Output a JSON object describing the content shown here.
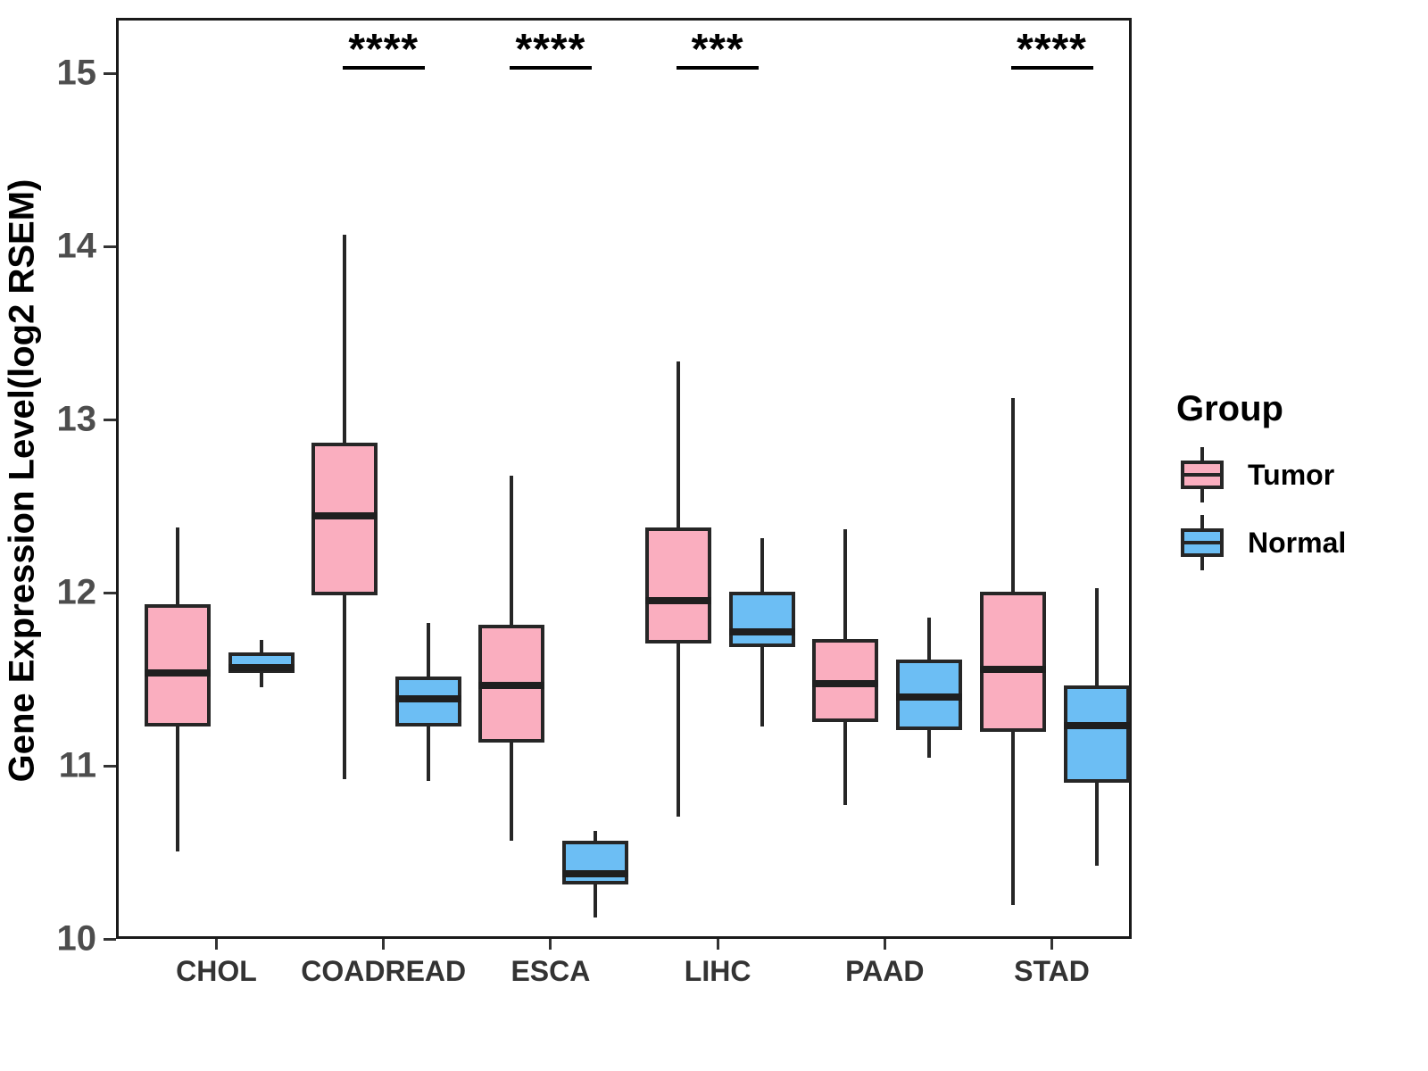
{
  "figure": {
    "y_axis": {
      "label": "Gene Expression Level(log2 RSEM)",
      "ticks": [
        10,
        11,
        12,
        13,
        14,
        15
      ]
    },
    "x_axis": {
      "categories": [
        "CHOL",
        "COADREAD",
        "ESCA",
        "LIHC",
        "PAAD",
        "STAD"
      ]
    },
    "legend": {
      "title": "Group",
      "items": [
        {
          "label": "Tumor",
          "color": "#FAAEBF"
        },
        {
          "label": "Normal",
          "color": "#6CBEF4"
        }
      ]
    },
    "significance": [
      {
        "category": "COADREAD",
        "stars": "****"
      },
      {
        "category": "ESCA",
        "stars": "****"
      },
      {
        "category": "LIHC",
        "stars": "***"
      },
      {
        "category": "STAD",
        "stars": "****"
      }
    ]
  },
  "chart_data": {
    "type": "boxplot",
    "title": "",
    "xlabel": "",
    "ylabel": "Gene Expression Level(log2 RSEM)",
    "ylim": [
      10,
      15.32
    ],
    "yticks": [
      10,
      11,
      12,
      13,
      14,
      15
    ],
    "grid": false,
    "legend_position": "right",
    "categories": [
      "CHOL",
      "COADREAD",
      "ESCA",
      "LIHC",
      "PAAD",
      "STAD"
    ],
    "series": [
      {
        "name": "Tumor",
        "color": "#FAAEBF",
        "border_color": "#262626",
        "boxes": [
          {
            "min": 10.52,
            "q1": 11.24,
            "median": 11.55,
            "q3": 11.95,
            "max": 12.39
          },
          {
            "min": 10.94,
            "q1": 12.0,
            "median": 12.46,
            "q3": 12.88,
            "max": 14.08
          },
          {
            "min": 10.58,
            "q1": 11.15,
            "median": 11.48,
            "q3": 11.83,
            "max": 12.69
          },
          {
            "min": 10.72,
            "q1": 11.72,
            "median": 11.97,
            "q3": 12.39,
            "max": 13.35
          },
          {
            "min": 10.79,
            "q1": 11.27,
            "median": 11.49,
            "q3": 11.75,
            "max": 12.38
          },
          {
            "min": 10.21,
            "q1": 11.21,
            "median": 11.57,
            "q3": 12.02,
            "max": 13.14
          }
        ]
      },
      {
        "name": "Normal",
        "color": "#6CBEF4",
        "border_color": "#262626",
        "boxes": [
          {
            "min": 11.47,
            "q1": 11.55,
            "median": 11.58,
            "q3": 11.67,
            "max": 11.74
          },
          {
            "min": 10.93,
            "q1": 11.24,
            "median": 11.4,
            "q3": 11.53,
            "max": 11.84
          },
          {
            "min": 10.14,
            "q1": 10.33,
            "median": 10.39,
            "q3": 10.58,
            "max": 10.64
          },
          {
            "min": 11.24,
            "q1": 11.7,
            "median": 11.79,
            "q3": 12.02,
            "max": 12.33
          },
          {
            "min": 11.06,
            "q1": 11.22,
            "median": 11.41,
            "q3": 11.63,
            "max": 11.87
          },
          {
            "min": 10.44,
            "q1": 10.92,
            "median": 11.25,
            "q3": 11.48,
            "max": 12.04
          }
        ]
      }
    ],
    "annotations": [
      {
        "category": "COADREAD",
        "text": "****"
      },
      {
        "category": "ESCA",
        "text": "****"
      },
      {
        "category": "LIHC",
        "text": "***"
      },
      {
        "category": "STAD",
        "text": "****"
      }
    ]
  }
}
